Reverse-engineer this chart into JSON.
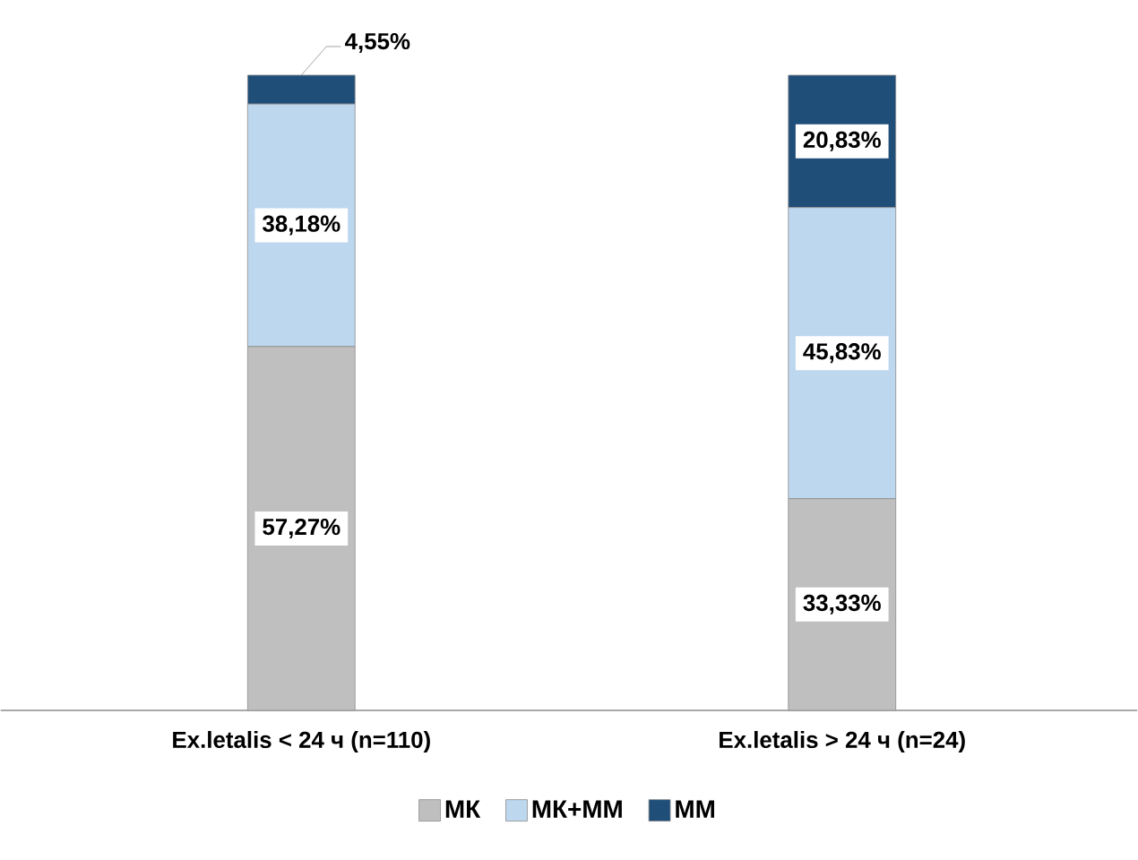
{
  "chart_data": {
    "type": "bar",
    "stacked": true,
    "categories": [
      "Ex.letalis < 24 ч (n=110)",
      "Ex.letalis > 24 ч (n=24)"
    ],
    "series": [
      {
        "name": "МК",
        "color": "#bfbfbf",
        "values": [
          57.27,
          33.33
        ],
        "value_labels": [
          "57,27%",
          "33,33%"
        ]
      },
      {
        "name": "МК+ММ",
        "color": "#bdd7ee",
        "values": [
          38.18,
          45.83
        ],
        "value_labels": [
          "38,18%",
          "45,83%"
        ]
      },
      {
        "name": "ММ",
        "color": "#1f4e79",
        "values": [
          4.55,
          20.83
        ],
        "value_labels": [
          "4,55%",
          "20,83%"
        ]
      }
    ],
    "legend": "bottom"
  }
}
